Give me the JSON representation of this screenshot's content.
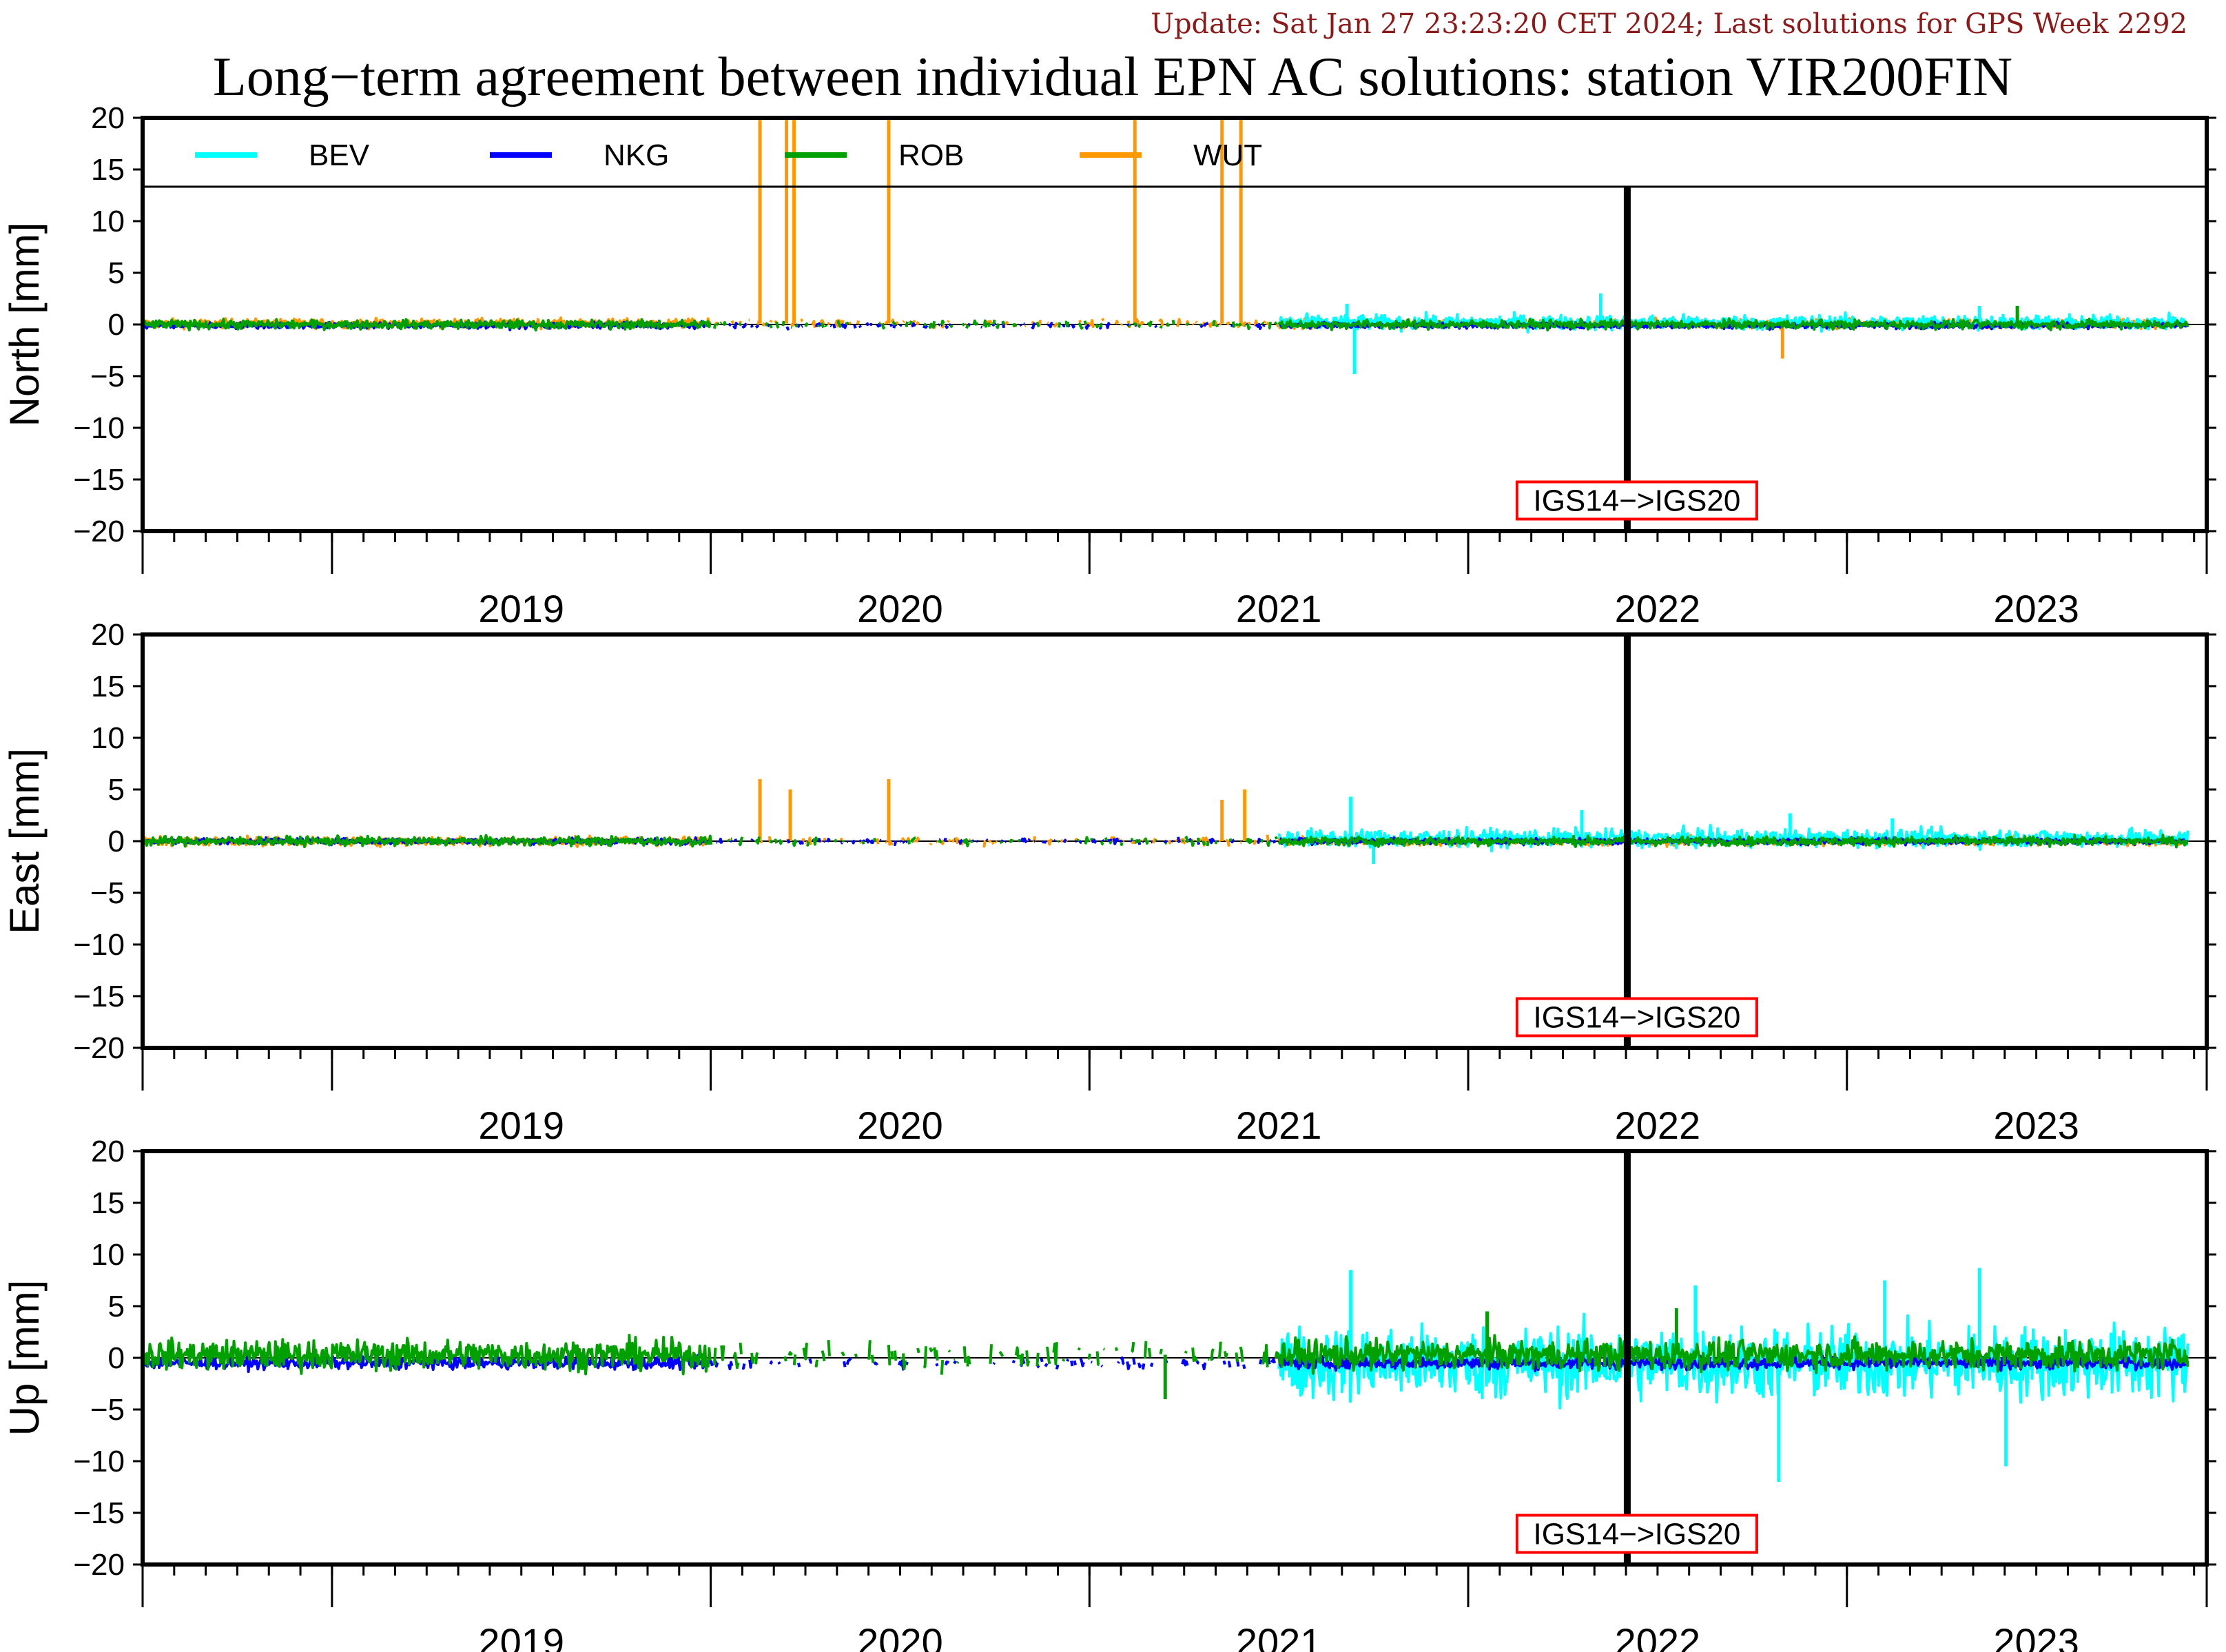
{
  "update_text": "Update: Sat Jan 27 23:23:20 CET 2024; Last solutions for GPS Week 2292",
  "colors": {
    "update": "#8b1a1a",
    "BEV": "#00ffff",
    "NKG": "#0000ff",
    "ROB": "#00a000",
    "WUT": "#ff9900",
    "marker_box": "#ff0000"
  },
  "chart_data": {
    "type": "line",
    "title": "Long−term agreement between individual EPN AC solutions: station VIR200FIN",
    "legend": {
      "placement": "top",
      "entries": [
        "BEV",
        "NKG",
        "ROB",
        "WUT"
      ]
    },
    "x_range": [
      2018.5,
      2023.95
    ],
    "x_ticks": [
      "2019",
      "2020",
      "2021",
      "2022",
      "2023"
    ],
    "y_ticks": [
      "20",
      "15",
      "10",
      "5",
      "0",
      "−5",
      "−10",
      "−15",
      "−20"
    ],
    "grid": false,
    "reference_change": {
      "label": "IGS14−>IGS20",
      "x": 2022.42
    },
    "panels": [
      {
        "ylabel": "North [mm]",
        "ylim": [
          -20,
          20
        ],
        "series": [
          {
            "name": "BEV",
            "x_start": 2021.5,
            "x_end": 2023.9,
            "baseline": 0.2,
            "noise": 0.5,
            "spikes": [
              [
                2021.7,
                -4.8
              ],
              [
                2021.68,
                2.0
              ],
              [
                2022.35,
                3.0
              ],
              [
                2023.35,
                1.8
              ]
            ]
          },
          {
            "name": "NKG",
            "x_start": 2018.5,
            "x_end": 2023.9,
            "baseline": -0.1,
            "noise": 0.2,
            "spikes": []
          },
          {
            "name": "ROB",
            "x_start": 2018.5,
            "x_end": 2023.9,
            "baseline": 0.0,
            "noise": 0.3,
            "spikes": [
              [
                2023.45,
                1.8
              ]
            ]
          },
          {
            "name": "WUT",
            "x_start": 2018.5,
            "x_end": 2023.9,
            "baseline": 0.1,
            "noise": 0.3,
            "spikes": [
              [
                2020.13,
                20
              ],
              [
                2020.2,
                20
              ],
              [
                2020.22,
                20
              ],
              [
                2020.47,
                20
              ],
              [
                2021.12,
                20
              ],
              [
                2021.35,
                20
              ],
              [
                2021.4,
                20
              ],
              [
                2022.83,
                -3.3
              ]
            ]
          }
        ]
      },
      {
        "ylabel": "East [mm]",
        "ylim": [
          -20,
          20
        ],
        "series": [
          {
            "name": "BEV",
            "x_start": 2021.5,
            "x_end": 2023.9,
            "baseline": 0.3,
            "noise": 0.6,
            "spikes": [
              [
                2021.69,
                4.3
              ],
              [
                2021.75,
                -2.2
              ],
              [
                2022.3,
                3.0
              ],
              [
                2022.85,
                2.7
              ],
              [
                2023.12,
                2.2
              ]
            ]
          },
          {
            "name": "NKG",
            "x_start": 2018.5,
            "x_end": 2023.9,
            "baseline": 0.0,
            "noise": 0.2,
            "spikes": []
          },
          {
            "name": "ROB",
            "x_start": 2018.5,
            "x_end": 2023.9,
            "baseline": 0.0,
            "noise": 0.3,
            "spikes": []
          },
          {
            "name": "WUT",
            "x_start": 2018.5,
            "x_end": 2023.9,
            "baseline": 0.0,
            "noise": 0.3,
            "spikes": [
              [
                2020.13,
                6.0
              ],
              [
                2020.21,
                5.0
              ],
              [
                2020.47,
                6.0
              ],
              [
                2021.35,
                4.0
              ],
              [
                2021.41,
                5.0
              ]
            ]
          }
        ]
      },
      {
        "ylabel": "Up [mm]",
        "ylim": [
          -20,
          20
        ],
        "series": [
          {
            "name": "BEV",
            "x_start": 2021.5,
            "x_end": 2023.9,
            "baseline": -0.5,
            "noise": 2.5,
            "spikes": [
              [
                2021.69,
                8.5
              ],
              [
                2022.82,
                -12.0
              ],
              [
                2023.42,
                -10.5
              ],
              [
                2023.35,
                8.7
              ],
              [
                2023.1,
                7.5
              ],
              [
                2022.6,
                7.0
              ]
            ]
          },
          {
            "name": "NKG",
            "x_start": 2018.5,
            "x_end": 2023.9,
            "baseline": -0.5,
            "noise": 0.4,
            "spikes": []
          },
          {
            "name": "ROB",
            "x_start": 2018.5,
            "x_end": 2023.9,
            "baseline": 0.3,
            "noise": 1.0,
            "spikes": [
              [
                2021.2,
                -4.0
              ],
              [
                2022.05,
                4.5
              ],
              [
                2022.55,
                4.8
              ]
            ]
          },
          {
            "name": "WUT",
            "x_start": 2018.5,
            "x_end": 2018.5,
            "baseline": 0.0,
            "noise": 0.0,
            "spikes": []
          }
        ]
      }
    ]
  }
}
